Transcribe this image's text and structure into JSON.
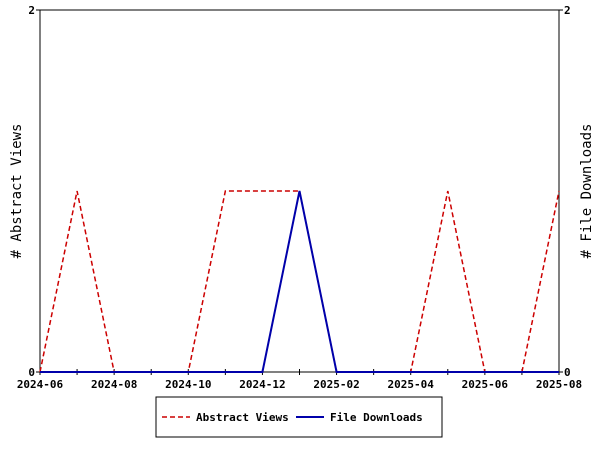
{
  "chart_data": {
    "type": "line",
    "x": [
      "2024-06",
      "2024-07",
      "2024-08",
      "2024-09",
      "2024-10",
      "2024-11",
      "2024-12",
      "2025-01",
      "2025-02",
      "2025-03",
      "2025-04",
      "2025-05",
      "2025-06",
      "2025-07",
      "2025-08"
    ],
    "x_tick_labels": [
      "2024-06",
      "2024-08",
      "2024-10",
      "2024-12",
      "2025-02",
      "2025-04",
      "2025-06",
      "2025-08"
    ],
    "series": [
      {
        "name": "Abstract Views",
        "values": [
          0,
          1,
          0,
          0,
          0,
          1,
          1,
          1,
          0,
          0,
          0,
          1,
          0,
          0,
          1
        ],
        "color": "#cc0000",
        "style": "dashed",
        "axis": "left"
      },
      {
        "name": "File Downloads",
        "values": [
          0,
          0,
          0,
          0,
          0,
          0,
          0,
          1,
          0,
          0,
          0,
          0,
          0,
          0,
          0
        ],
        "color": "#0000aa",
        "style": "solid",
        "axis": "right"
      }
    ],
    "ylabel": "# Abstract Views",
    "y2label": "# File Downloads",
    "ylim": [
      0,
      2
    ],
    "y2lim": [
      0,
      2
    ],
    "y_ticks": [
      "0",
      "2"
    ],
    "y2_ticks": [
      "0",
      "2"
    ],
    "grid": false,
    "legend_placement": "bottom"
  }
}
